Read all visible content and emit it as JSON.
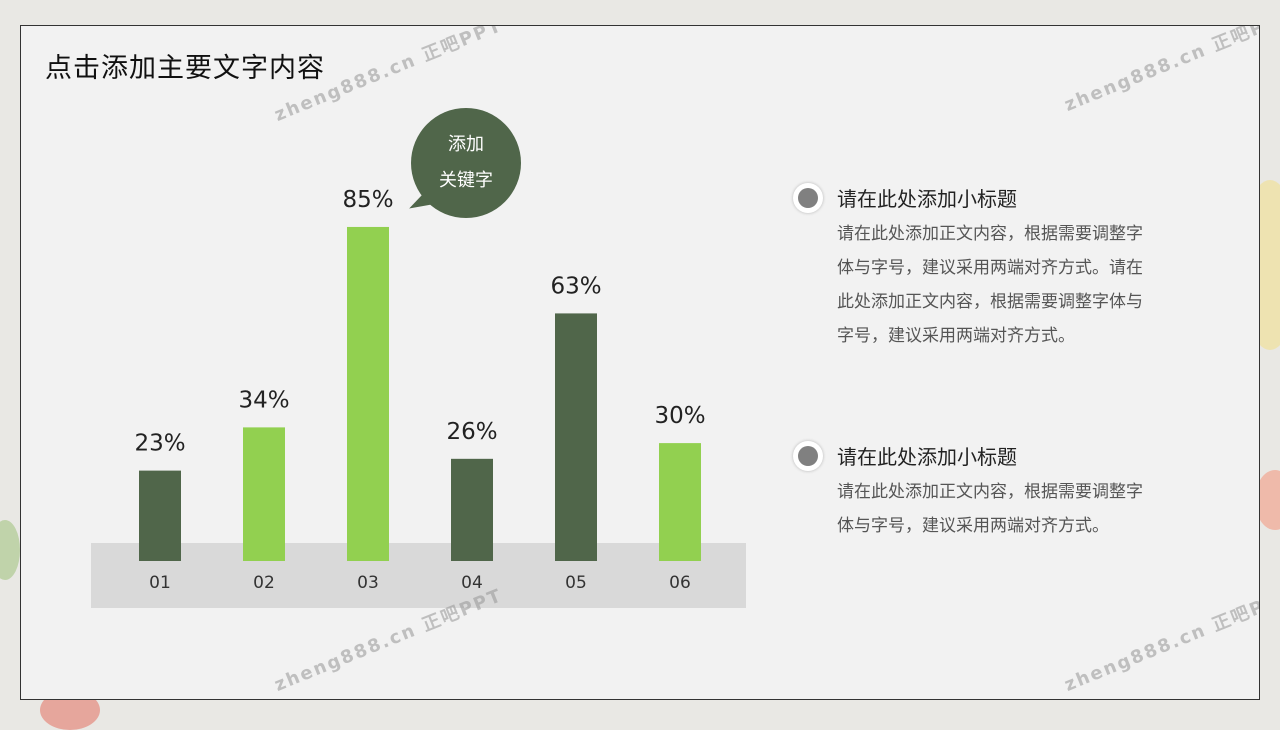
{
  "title": "点击添加主要文字内容",
  "bubble": {
    "line1": "添加",
    "line2": "关键字",
    "color": "#50664a"
  },
  "chart_data": {
    "type": "bar",
    "categories": [
      "01",
      "02",
      "03",
      "04",
      "05",
      "06"
    ],
    "values": [
      23,
      34,
      85,
      26,
      63,
      30
    ],
    "value_labels": [
      "23%",
      "34%",
      "85%",
      "26%",
      "63%",
      "30%"
    ],
    "colors": [
      "#50664a",
      "#92d050",
      "#92d050",
      "#50664a",
      "#50664a",
      "#92d050"
    ],
    "ylim": [
      0,
      100
    ],
    "grid": false,
    "axis_band_color": "#d9d9d9"
  },
  "items": [
    {
      "subtitle": "请在此处添加小标题",
      "body": "请在此处添加正文内容，根据需要调整字体与字号，建议采用两端对齐方式。请在此处添加正文内容，根据需要调整字体与字号，建议采用两端对齐方式。"
    },
    {
      "subtitle": "请在此处添加小标题",
      "body": "请在此处添加正文内容，根据需要调整字体与字号，建议采用两端对齐方式。"
    }
  ],
  "watermark": "zheng888.cn 正吧PPT"
}
